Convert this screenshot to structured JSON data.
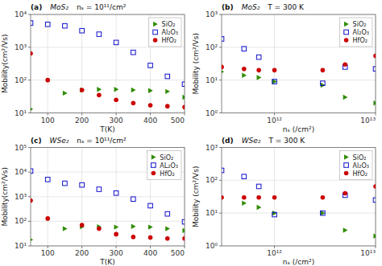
{
  "chart_data": [
    {
      "type": "scatter",
      "annotations": [
        "(a)",
        "MoS₂",
        "nₛ = 10¹¹/cm²"
      ],
      "xlabel": "T(K)",
      "ylabel": "Mobility(cm²/Vs)",
      "log": "y",
      "xlim": [
        50,
        500
      ],
      "xticks": [
        100,
        200,
        300,
        400,
        500
      ],
      "ylim": [
        10,
        10000
      ],
      "yticks": [
        {
          "value": 10,
          "label": "10¹"
        },
        {
          "value": 100,
          "label": "10²"
        },
        {
          "value": 1000,
          "label": "10³"
        },
        {
          "value": 10000,
          "label": "10⁴"
        }
      ],
      "grid": true,
      "legend": "upper-right",
      "series": [
        {
          "name": "SiO₂",
          "color": "#2E8B00",
          "marker": "triangle-right",
          "x": [
            50,
            150,
            200,
            250,
            300,
            350,
            400,
            450,
            500
          ],
          "values": [
            13,
            40,
            50,
            52,
            52,
            50,
            48,
            45,
            30
          ]
        },
        {
          "name": "Al₂O₃",
          "color": "#1010CC",
          "marker": "square-open",
          "x": [
            50,
            100,
            150,
            200,
            250,
            300,
            350,
            400,
            450,
            500
          ],
          "values": [
            5500,
            5000,
            4500,
            3200,
            2500,
            1400,
            700,
            280,
            130,
            75
          ]
        },
        {
          "name": "HfO₂",
          "color": "#CC0000",
          "marker": "circle",
          "x": [
            50,
            100,
            200,
            250,
            300,
            350,
            400,
            450,
            500
          ],
          "values": [
            650,
            100,
            50,
            35,
            25,
            20,
            17,
            16,
            15
          ]
        }
      ]
    },
    {
      "type": "scatter",
      "annotations": [
        "(b)",
        "MoS₂",
        "T = 300 K"
      ],
      "xlabel": "nₛ (/cm²)",
      "ylabel": "Mobility (cm²/Vs)",
      "log": true,
      "xlim": [
        300000000000.0,
        10000000000000.0
      ],
      "xticks": [
        {
          "value": 1000000000000.0,
          "label": "10¹²"
        },
        {
          "value": 10000000000000.0,
          "label": "10¹³"
        }
      ],
      "ylim": [
        1,
        1000
      ],
      "yticks": [
        {
          "value": 1,
          "label": "10⁰"
        },
        {
          "value": 10,
          "label": "10¹"
        },
        {
          "value": 100,
          "label": "10²"
        },
        {
          "value": 1000,
          "label": "10³"
        }
      ],
      "grid": true,
      "legend": "upper-right",
      "series": [
        {
          "name": "SiO₂",
          "color": "#2E8B00",
          "marker": "triangle-right",
          "x": [
            300000000000.0,
            500000000000.0,
            700000000000.0,
            1000000000000.0,
            3000000000000.0,
            5000000000000.0,
            10000000000000.0
          ],
          "values": [
            18,
            14,
            12,
            9,
            7,
            3,
            2
          ]
        },
        {
          "name": "Al₂O₃",
          "color": "#1010CC",
          "marker": "square-open",
          "x": [
            300000000000.0,
            500000000000.0,
            700000000000.0,
            1000000000000.0,
            3000000000000.0,
            5000000000000.0,
            10000000000000.0
          ],
          "values": [
            180,
            90,
            50,
            9,
            8,
            25,
            22
          ]
        },
        {
          "name": "HfO₂",
          "color": "#CC0000",
          "marker": "circle",
          "x": [
            300000000000.0,
            500000000000.0,
            700000000000.0,
            1000000000000.0,
            3000000000000.0,
            5000000000000.0,
            10000000000000.0
          ],
          "values": [
            25,
            22,
            20,
            20,
            20,
            30,
            55
          ]
        }
      ]
    },
    {
      "type": "scatter",
      "annotations": [
        "(c)",
        "WSe₂",
        "nₛ = 10¹¹/cm²"
      ],
      "xlabel": "T(K)",
      "ylabel": "Mobility(cm²/Vs)",
      "log": "y",
      "xlim": [
        50,
        500
      ],
      "xticks": [
        100,
        200,
        300,
        400,
        500
      ],
      "ylim": [
        10,
        100000
      ],
      "yticks": [
        {
          "value": 10,
          "label": "10¹"
        },
        {
          "value": 100,
          "label": "10²"
        },
        {
          "value": 1000,
          "label": "10³"
        },
        {
          "value": 10000,
          "label": "10⁴"
        },
        {
          "value": 100000,
          "label": "10⁵"
        }
      ],
      "grid": true,
      "legend": "upper-right",
      "series": [
        {
          "name": "SiO₂",
          "color": "#2E8B00",
          "marker": "triangle-right",
          "x": [
            50,
            150,
            200,
            250,
            300,
            350,
            400,
            450,
            500
          ],
          "values": [
            18,
            50,
            60,
            60,
            58,
            62,
            58,
            50,
            42
          ]
        },
        {
          "name": "AL₂O₃",
          "color": "#1010CC",
          "marker": "square-open",
          "x": [
            50,
            100,
            150,
            200,
            250,
            300,
            350,
            400,
            450,
            500
          ],
          "values": [
            11000,
            5000,
            3500,
            3000,
            2000,
            1400,
            800,
            430,
            200,
            95
          ]
        },
        {
          "name": "HfO₂",
          "color": "#CC0000",
          "marker": "circle",
          "x": [
            50,
            100,
            200,
            250,
            300,
            350,
            400,
            450,
            500
          ],
          "values": [
            700,
            130,
            70,
            50,
            30,
            23,
            22,
            20,
            20
          ]
        }
      ]
    },
    {
      "type": "scatter",
      "annotations": [
        "(d)",
        "WSe₂",
        "T = 300 K"
      ],
      "xlabel": "nₛ (/cm²)",
      "ylabel": "Mobility (cm²/Vs)",
      "log": true,
      "xlim": [
        300000000000.0,
        10000000000000.0
      ],
      "xticks": [
        {
          "value": 1000000000000.0,
          "label": "10¹²"
        },
        {
          "value": 10000000000000.0,
          "label": "10¹³"
        }
      ],
      "ylim": [
        1,
        1000
      ],
      "yticks": [
        {
          "value": 1,
          "label": "10⁰"
        },
        {
          "value": 10,
          "label": "10¹"
        },
        {
          "value": 100,
          "label": "10²"
        },
        {
          "value": 1000,
          "label": "10³"
        }
      ],
      "grid": true,
      "legend": "upper-right",
      "series": [
        {
          "name": "SiO₂",
          "color": "#2E8B00",
          "marker": "triangle-right",
          "x": [
            300000000000.0,
            500000000000.0,
            700000000000.0,
            1000000000000.0,
            3000000000000.0,
            5000000000000.0,
            10000000000000.0
          ],
          "values": [
            30,
            20,
            15,
            10,
            10,
            3,
            2
          ]
        },
        {
          "name": "Al₂O₃",
          "color": "#1010CC",
          "marker": "square-open",
          "x": [
            300000000000.0,
            500000000000.0,
            700000000000.0,
            1000000000000.0,
            3000000000000.0,
            5000000000000.0,
            10000000000000.0
          ],
          "values": [
            200,
            130,
            65,
            9,
            10,
            35,
            25
          ]
        },
        {
          "name": "HfO₂",
          "color": "#CC0000",
          "marker": "circle",
          "x": [
            300000000000.0,
            500000000000.0,
            700000000000.0,
            1000000000000.0,
            3000000000000.0,
            5000000000000.0,
            10000000000000.0
          ],
          "values": [
            30,
            30,
            30,
            30,
            30,
            40,
            65
          ]
        }
      ]
    }
  ]
}
